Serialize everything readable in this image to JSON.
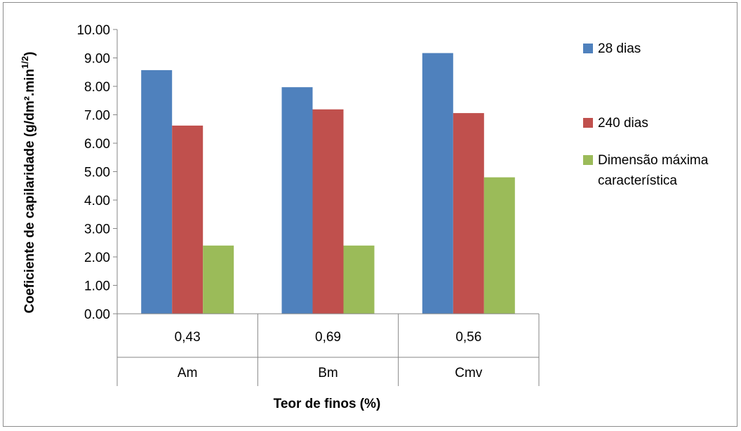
{
  "chart_data": {
    "type": "bar",
    "categories": [
      {
        "value": "0,43",
        "group": "Am"
      },
      {
        "value": "0,69",
        "group": "Bm"
      },
      {
        "value": "0,56",
        "group": "Cmv"
      }
    ],
    "series": [
      {
        "name": "28 dias",
        "color": "#4f81bd",
        "values": [
          8.57,
          7.97,
          9.17
        ]
      },
      {
        "name": "240 dias",
        "color": "#c0504d",
        "values": [
          6.62,
          7.19,
          7.06
        ]
      },
      {
        "name": "Dimensão máxima característica",
        "color": "#9bbb59",
        "values": [
          2.4,
          2.4,
          4.8
        ]
      }
    ],
    "legend_labels": [
      [
        "28 dias"
      ],
      [
        "240 dias"
      ],
      [
        "Dimensão máxima",
        "característica"
      ]
    ],
    "xlabel": "Teor de finos (%)",
    "ylabel": "Coeficiente de capilaridade (g/dm².min",
    "ylabel_superscript": "1/2",
    "ylabel_close": ")",
    "ylim": [
      0,
      10
    ],
    "ytick_step": 1,
    "yticks": [
      "0.00",
      "1.00",
      "2.00",
      "3.00",
      "4.00",
      "5.00",
      "6.00",
      "7.00",
      "8.00",
      "9.00",
      "10.00"
    ],
    "grid": false,
    "legend_position": "right"
  }
}
